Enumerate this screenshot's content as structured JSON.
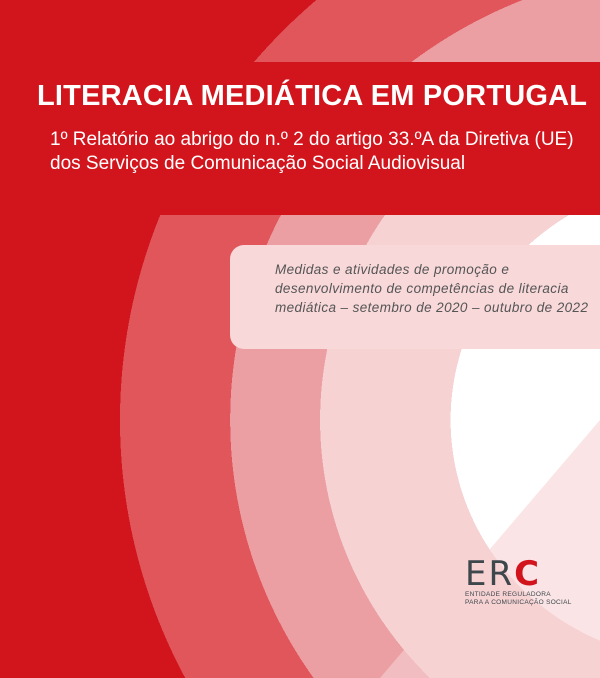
{
  "cover": {
    "title": "LITERACIA MEDIÁTICA EM PORTUGAL",
    "subtitle_line1": "1º Relatório ao abrigo do n.º 2 do artigo 33.ºA da Diretiva (UE)",
    "subtitle_line2": "dos Serviços de Comunicação Social Audiovisual",
    "description": "Medidas e atividades de promoção e desenvolvimento de competências de literacia mediática – setembro de 2020 – outubro de 2022"
  },
  "logo": {
    "letters": "ER",
    "accent_letter": "C",
    "tagline_line1": "ENTIDADE REGULADORA",
    "tagline_line2": "PARA A COMUNICAÇÃO SOCIAL"
  },
  "colors": {
    "brand_red": "#d2151d",
    "band1": "#e0565b",
    "band2": "#ec9fa2",
    "band3": "#f6d2d3"
  }
}
